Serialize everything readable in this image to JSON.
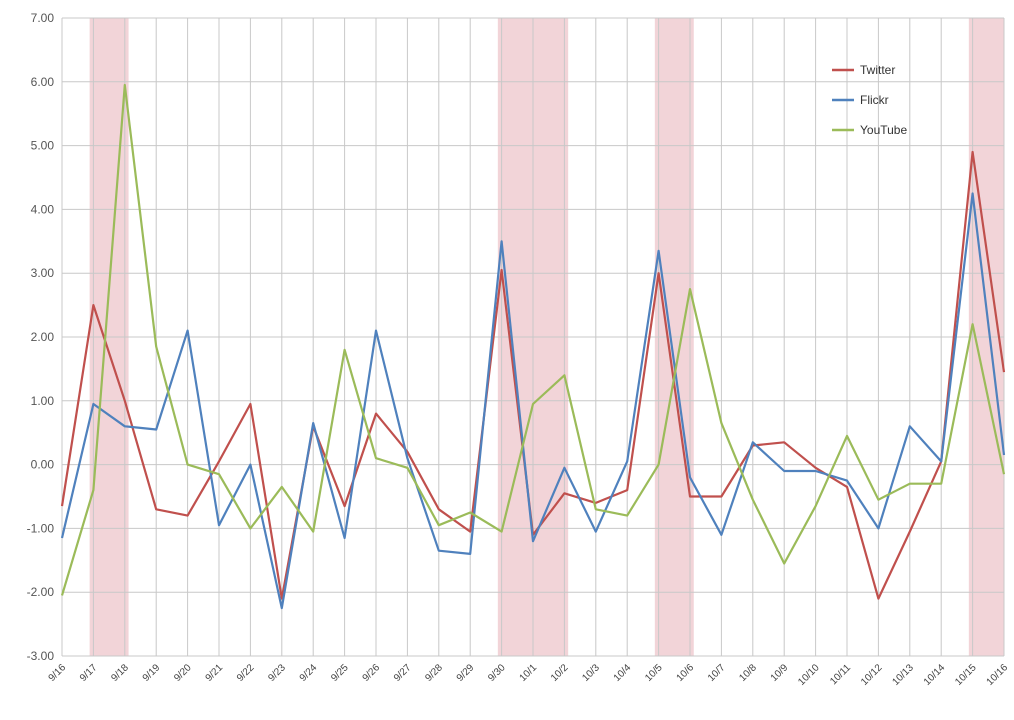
{
  "chart_data": {
    "type": "line",
    "title": "",
    "xlabel": "",
    "ylabel": "",
    "ylim": [
      -3,
      7
    ],
    "yticks": [
      "-3.00",
      "-2.00",
      "-1.00",
      "0.00",
      "1.00",
      "2.00",
      "3.00",
      "4.00",
      "5.00",
      "6.00",
      "7.00"
    ],
    "grid": true,
    "legend_position": "top-right",
    "categories": [
      "9/16",
      "9/17",
      "9/18",
      "9/19",
      "9/20",
      "9/21",
      "9/22",
      "9/23",
      "9/24",
      "9/25",
      "9/26",
      "9/27",
      "9/28",
      "9/29",
      "9/30",
      "10/1",
      "10/2",
      "10/3",
      "10/4",
      "10/5",
      "10/6",
      "10/7",
      "10/8",
      "10/9",
      "10/10",
      "10/11",
      "10/12",
      "10/13",
      "10/14",
      "10/15",
      "10/16"
    ],
    "highlight_bands": [
      [
        "9/17",
        "9/18"
      ],
      [
        "9/30",
        "10/2"
      ],
      [
        "10/5",
        "10/6"
      ],
      [
        "10/15",
        "10/16"
      ]
    ],
    "highlight_color": "#f2d4d8",
    "series": [
      {
        "name": "Twitter",
        "color": "#c0504d",
        "values": [
          -0.65,
          2.5,
          1.0,
          -0.7,
          -0.8,
          0.05,
          0.95,
          -2.1,
          0.6,
          -0.65,
          0.8,
          0.2,
          -0.7,
          -1.05,
          3.05,
          -1.1,
          -0.45,
          -0.6,
          -0.4,
          3.0,
          -0.5,
          -0.5,
          0.3,
          0.35,
          -0.05,
          -0.35,
          -2.1,
          -1.05,
          0.05,
          4.9,
          1.45
        ]
      },
      {
        "name": "Flickr",
        "color": "#4f81bd",
        "values": [
          -1.15,
          0.95,
          0.6,
          0.55,
          2.1,
          -0.95,
          0.0,
          -2.25,
          0.65,
          -1.15,
          2.1,
          0.1,
          -1.35,
          -1.4,
          3.5,
          -1.2,
          -0.05,
          -1.05,
          0.05,
          3.35,
          -0.2,
          -1.1,
          0.35,
          -0.1,
          -0.1,
          -0.25,
          -1.0,
          0.6,
          0.05,
          4.25,
          0.15
        ]
      },
      {
        "name": "YouTube",
        "color": "#9bbb59",
        "values": [
          -2.05,
          -0.4,
          5.95,
          1.85,
          0.0,
          -0.15,
          -1.0,
          -0.35,
          -1.05,
          1.8,
          0.1,
          -0.05,
          -0.95,
          -0.75,
          -1.05,
          0.95,
          1.4,
          -0.7,
          -0.8,
          0.0,
          2.75,
          0.65,
          -0.55,
          -1.55,
          -0.65,
          0.45,
          -0.55,
          -0.3,
          -0.3,
          2.2,
          -0.15
        ]
      }
    ]
  }
}
